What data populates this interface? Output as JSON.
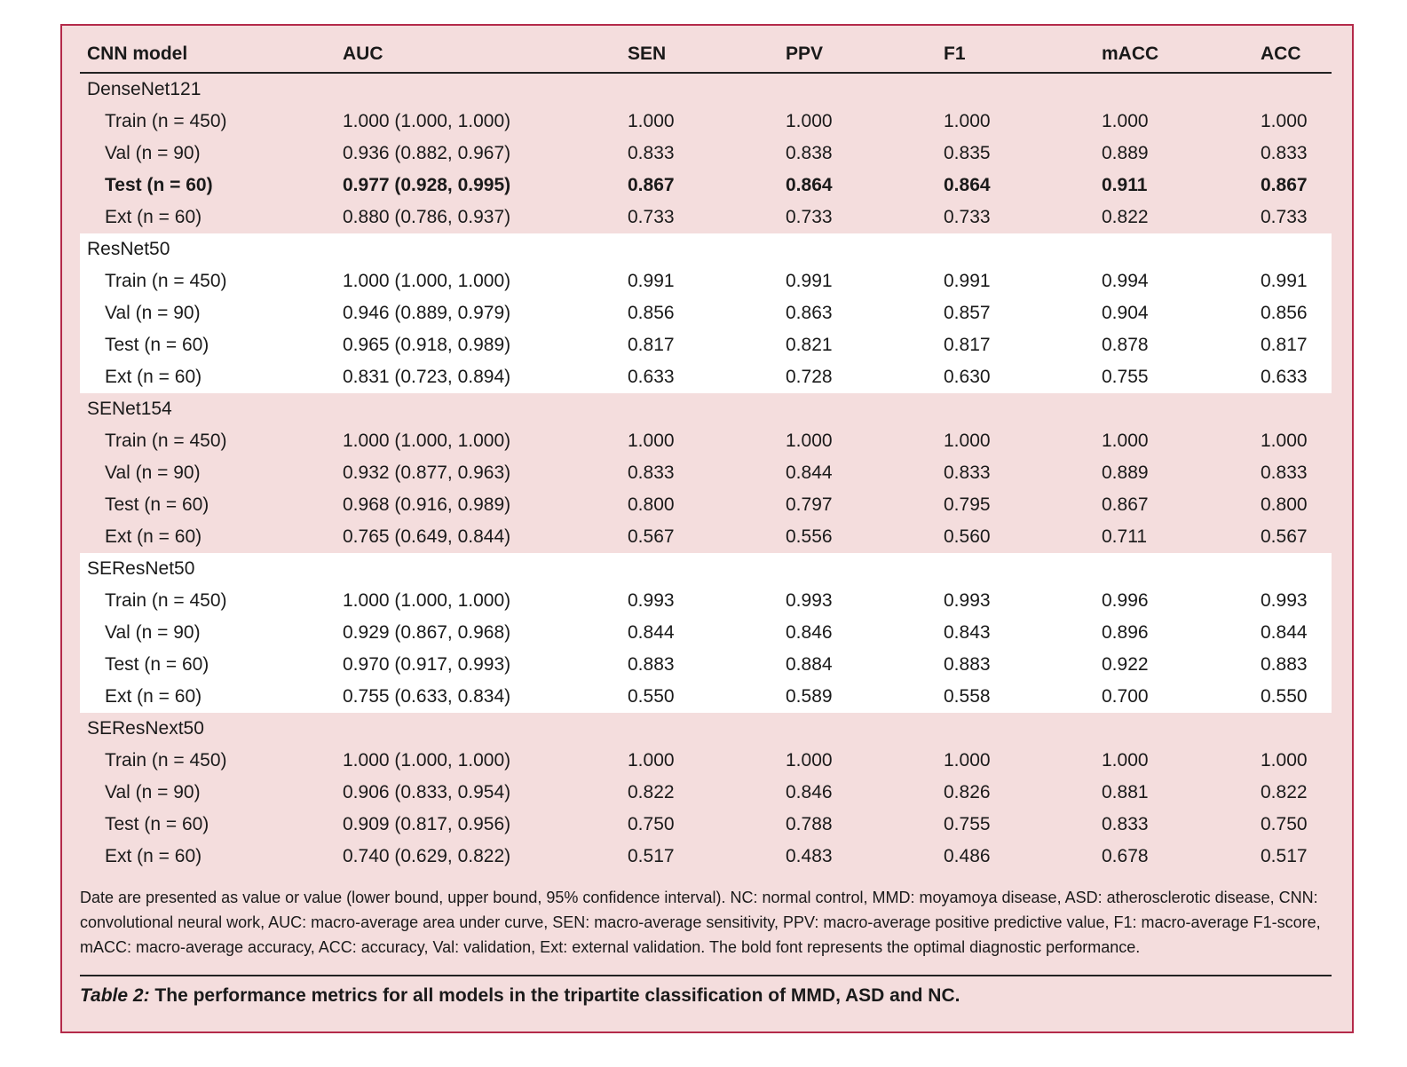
{
  "table": {
    "headers": [
      "CNN model",
      "AUC",
      "SEN",
      "PPV",
      "F1",
      "mACC",
      "ACC"
    ],
    "groups": [
      {
        "name": "DenseNet121",
        "rows": [
          {
            "label": "Train (n = 450)",
            "auc": "1.000 (1.000, 1.000)",
            "sen": "1.000",
            "ppv": "1.000",
            "f1": "1.000",
            "macc": "1.000",
            "acc": "1.000",
            "bold": false
          },
          {
            "label": "Val (n = 90)",
            "auc": "0.936 (0.882, 0.967)",
            "sen": "0.833",
            "ppv": "0.838",
            "f1": "0.835",
            "macc": "0.889",
            "acc": "0.833",
            "bold": false
          },
          {
            "label": "Test (n = 60)",
            "auc": "0.977 (0.928, 0.995)",
            "sen": "0.867",
            "ppv": "0.864",
            "f1": "0.864",
            "macc": "0.911",
            "acc": "0.867",
            "bold": true
          },
          {
            "label": "Ext (n = 60)",
            "auc": "0.880 (0.786, 0.937)",
            "sen": "0.733",
            "ppv": "0.733",
            "f1": "0.733",
            "macc": "0.822",
            "acc": "0.733",
            "bold": false
          }
        ]
      },
      {
        "name": "ResNet50",
        "rows": [
          {
            "label": "Train (n = 450)",
            "auc": "1.000 (1.000, 1.000)",
            "sen": "0.991",
            "ppv": "0.991",
            "f1": "0.991",
            "macc": "0.994",
            "acc": "0.991",
            "bold": false
          },
          {
            "label": "Val (n = 90)",
            "auc": "0.946 (0.889, 0.979)",
            "sen": "0.856",
            "ppv": "0.863",
            "f1": "0.857",
            "macc": "0.904",
            "acc": "0.856",
            "bold": false
          },
          {
            "label": "Test (n = 60)",
            "auc": "0.965 (0.918, 0.989)",
            "sen": "0.817",
            "ppv": "0.821",
            "f1": "0.817",
            "macc": "0.878",
            "acc": "0.817",
            "bold": false
          },
          {
            "label": "Ext (n = 60)",
            "auc": "0.831 (0.723, 0.894)",
            "sen": "0.633",
            "ppv": "0.728",
            "f1": "0.630",
            "macc": "0.755",
            "acc": "0.633",
            "bold": false
          }
        ]
      },
      {
        "name": "SENet154",
        "rows": [
          {
            "label": "Train (n = 450)",
            "auc": "1.000 (1.000, 1.000)",
            "sen": "1.000",
            "ppv": "1.000",
            "f1": "1.000",
            "macc": "1.000",
            "acc": "1.000",
            "bold": false
          },
          {
            "label": "Val (n = 90)",
            "auc": "0.932 (0.877, 0.963)",
            "sen": "0.833",
            "ppv": "0.844",
            "f1": "0.833",
            "macc": "0.889",
            "acc": "0.833",
            "bold": false
          },
          {
            "label": "Test (n = 60)",
            "auc": "0.968 (0.916, 0.989)",
            "sen": "0.800",
            "ppv": "0.797",
            "f1": "0.795",
            "macc": "0.867",
            "acc": "0.800",
            "bold": false
          },
          {
            "label": "Ext (n = 60)",
            "auc": "0.765 (0.649, 0.844)",
            "sen": "0.567",
            "ppv": "0.556",
            "f1": "0.560",
            "macc": "0.711",
            "acc": "0.567",
            "bold": false
          }
        ]
      },
      {
        "name": "SEResNet50",
        "rows": [
          {
            "label": "Train (n = 450)",
            "auc": "1.000 (1.000, 1.000)",
            "sen": "0.993",
            "ppv": "0.993",
            "f1": "0.993",
            "macc": "0.996",
            "acc": "0.993",
            "bold": false
          },
          {
            "label": "Val (n = 90)",
            "auc": "0.929 (0.867, 0.968)",
            "sen": "0.844",
            "ppv": "0.846",
            "f1": "0.843",
            "macc": "0.896",
            "acc": "0.844",
            "bold": false
          },
          {
            "label": "Test (n = 60)",
            "auc": "0.970 (0.917, 0.993)",
            "sen": "0.883",
            "ppv": "0.884",
            "f1": "0.883",
            "macc": "0.922",
            "acc": "0.883",
            "bold": false
          },
          {
            "label": "Ext (n = 60)",
            "auc": "0.755 (0.633, 0.834)",
            "sen": "0.550",
            "ppv": "0.589",
            "f1": "0.558",
            "macc": "0.700",
            "acc": "0.550",
            "bold": false
          }
        ]
      },
      {
        "name": "SEResNext50",
        "rows": [
          {
            "label": "Train (n = 450)",
            "auc": "1.000 (1.000, 1.000)",
            "sen": "1.000",
            "ppv": "1.000",
            "f1": "1.000",
            "macc": "1.000",
            "acc": "1.000",
            "bold": false
          },
          {
            "label": "Val (n = 90)",
            "auc": "0.906 (0.833, 0.954)",
            "sen": "0.822",
            "ppv": "0.846",
            "f1": "0.826",
            "macc": "0.881",
            "acc": "0.822",
            "bold": false
          },
          {
            "label": "Test (n = 60)",
            "auc": "0.909 (0.817, 0.956)",
            "sen": "0.750",
            "ppv": "0.788",
            "f1": "0.755",
            "macc": "0.833",
            "acc": "0.750",
            "bold": false
          },
          {
            "label": "Ext (n = 60)",
            "auc": "0.740 (0.629, 0.822)",
            "sen": "0.517",
            "ppv": "0.483",
            "f1": "0.486",
            "macc": "0.678",
            "acc": "0.517",
            "bold": false
          }
        ]
      }
    ]
  },
  "footnote": "Date are presented as value or value (lower bound, upper bound, 95% confidence interval). NC: normal control, MMD: moyamoya disease, ASD: atherosclerotic disease, CNN: convolutional neural work, AUC: macro-average area under curve, SEN: macro-average sensitivity, PPV: macro-average positive predictive value, F1: macro-average F1-score, mACC: macro-average accuracy, ACC: accuracy, Val: validation, Ext: external validation. The bold font represents the optimal diagnostic performance.",
  "caption": {
    "label": "Table 2:",
    "text": " The performance metrics for all models in the tripartite classification of MMD, ASD and NC."
  },
  "colors": {
    "band_pink": "#f4dddd",
    "band_white": "#ffffff",
    "border": "#b42a4a"
  }
}
